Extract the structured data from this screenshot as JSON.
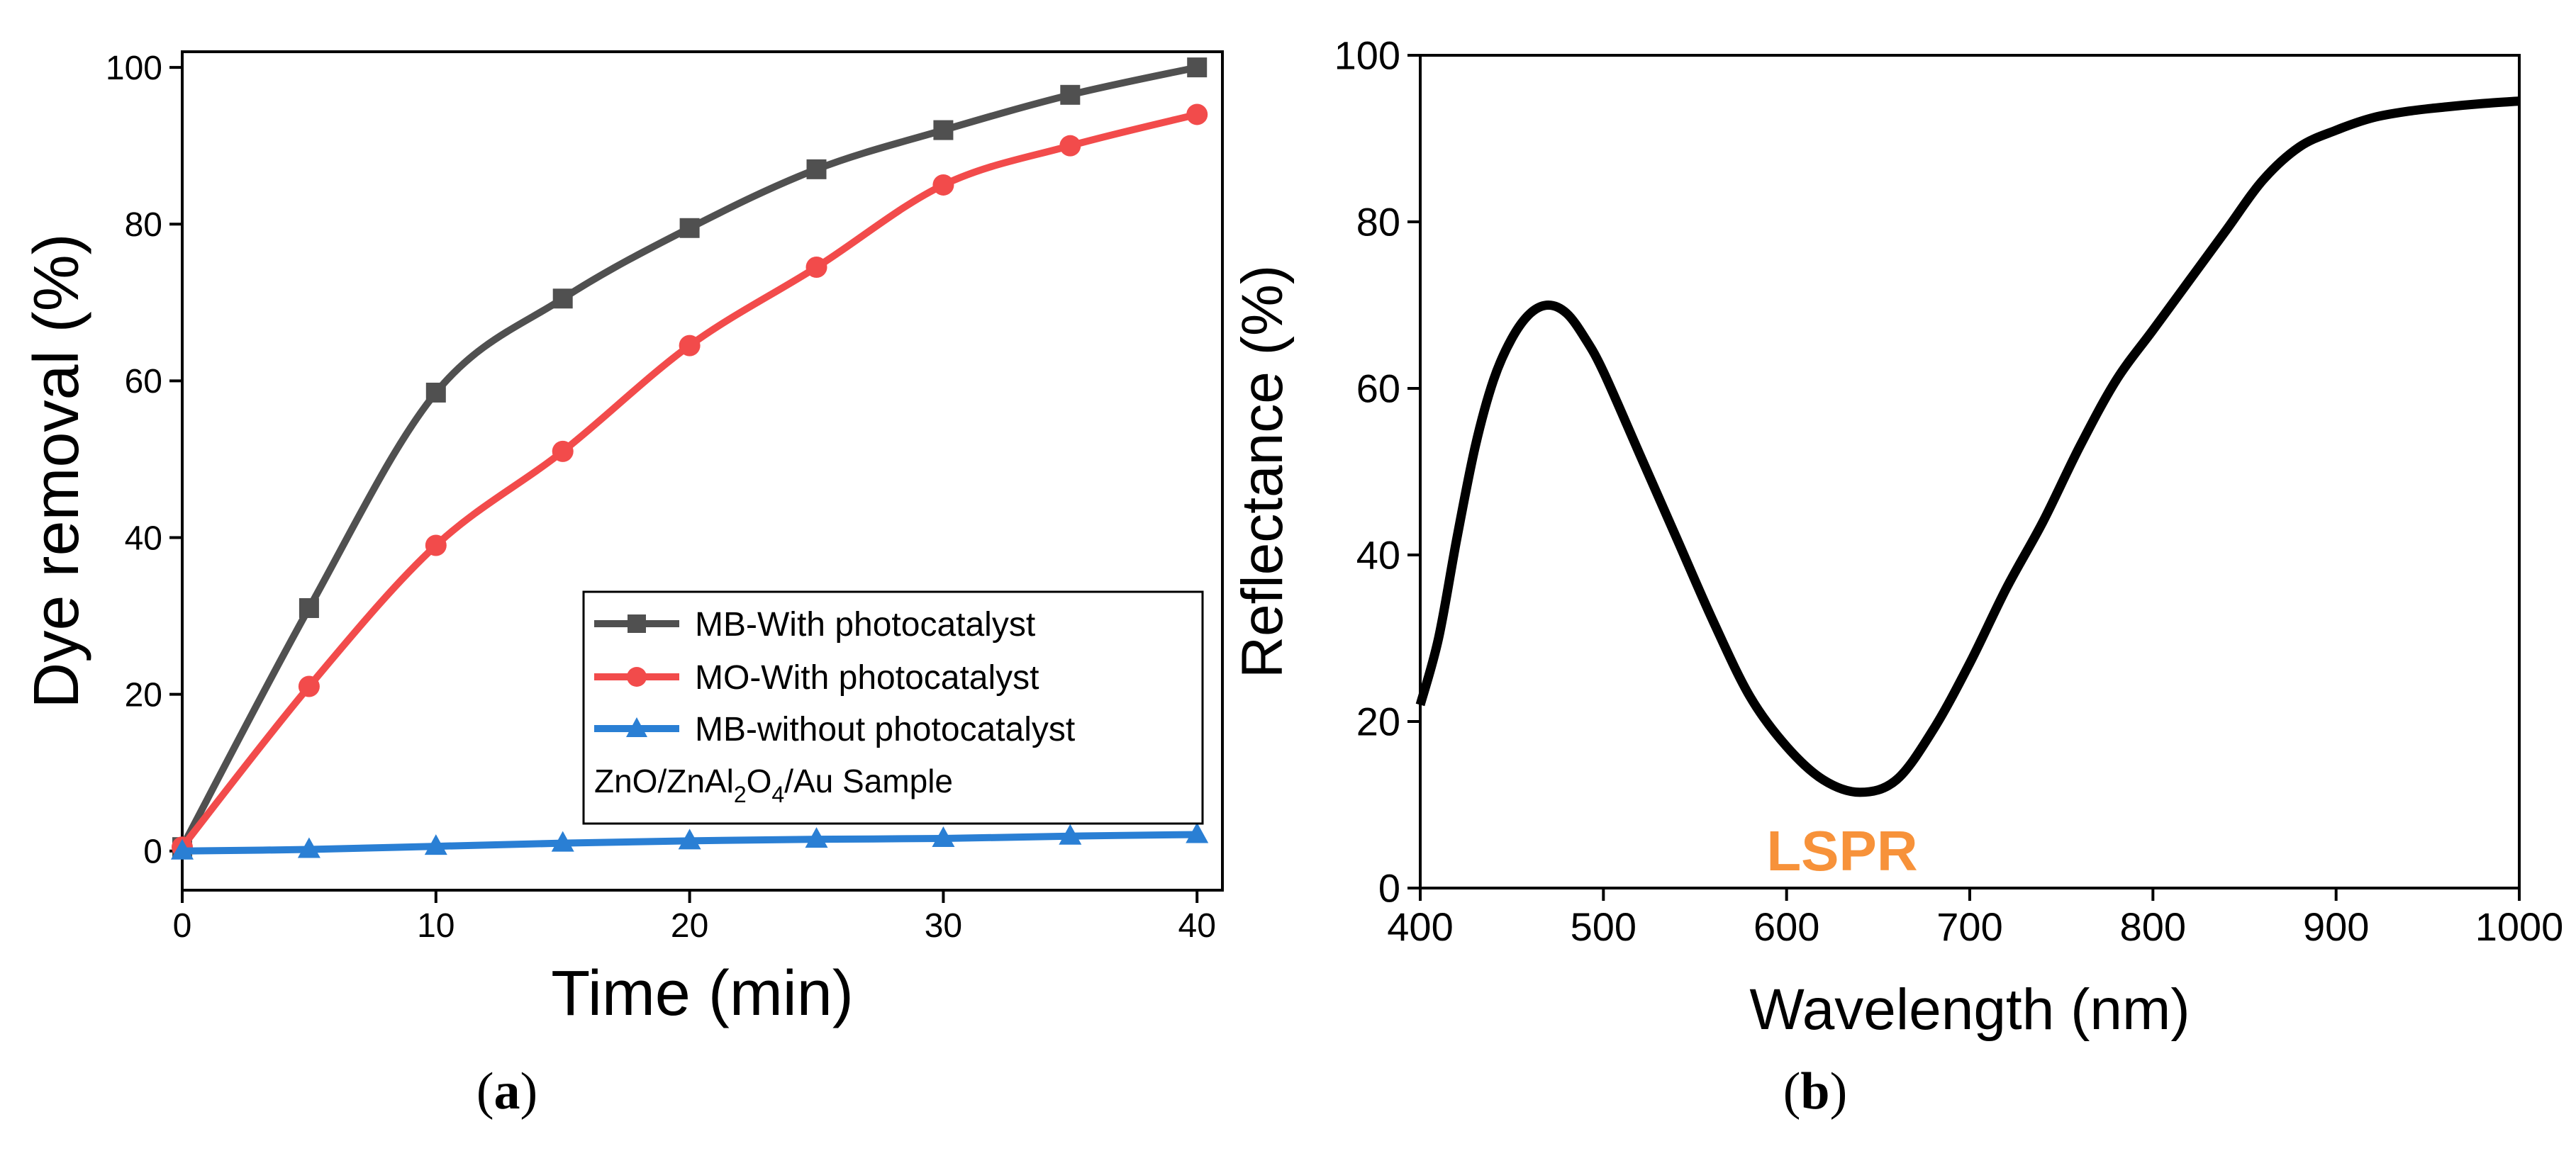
{
  "colors": {
    "mb_with": "#505050",
    "mo_with": "#f24b4b",
    "mb_without": "#2a7fd4",
    "reflectance": "#000000",
    "lspr": "#f7923a"
  },
  "chart_data": [
    {
      "type": "line",
      "panel_label": "a",
      "xlabel": "Time (min)",
      "ylabel": "Dye removal (%)",
      "xlim": [
        0,
        41
      ],
      "ylim": [
        -5,
        102
      ],
      "xticks": [
        0,
        10,
        20,
        30,
        40
      ],
      "yticks": [
        0,
        20,
        40,
        60,
        80,
        100
      ],
      "legend_position": "bottom-right",
      "legend_note": {
        "prefix": "ZnO/ZnAl",
        "sub1": "2",
        "mid": "O",
        "sub2": "4",
        "suffix": "/Au Sample"
      },
      "x": [
        0,
        5,
        10,
        15,
        20,
        25,
        30,
        35,
        40
      ],
      "series": [
        {
          "name": "MB-With photocatalyst",
          "color": "#505050",
          "marker": "square",
          "values": [
            0.5,
            31,
            58.5,
            70.5,
            79.5,
            87,
            92,
            96.5,
            100
          ]
        },
        {
          "name": "MO-With photocatalyst",
          "color": "#f24b4b",
          "marker": "circle",
          "values": [
            0.5,
            21,
            39,
            51,
            64.5,
            74.5,
            85,
            90,
            94
          ]
        },
        {
          "name": "MB-without photocatalyst",
          "color": "#2a7fd4",
          "marker": "triangle",
          "values": [
            0,
            0.2,
            0.6,
            1.0,
            1.3,
            1.5,
            1.6,
            1.9,
            2.1
          ]
        }
      ]
    },
    {
      "type": "line",
      "panel_label": "b",
      "xlabel": "Wavelength (nm)",
      "ylabel": "Reflectance (%)",
      "xlim": [
        400,
        1000
      ],
      "ylim": [
        0,
        100
      ],
      "xticks": [
        400,
        500,
        600,
        700,
        800,
        900,
        1000
      ],
      "yticks": [
        0,
        20,
        40,
        60,
        80,
        100
      ],
      "annotation": "LSPR",
      "series": [
        {
          "name": "Reflectance",
          "color": "#000000",
          "x": [
            400,
            410,
            420,
            430,
            440,
            450,
            460,
            470,
            480,
            490,
            500,
            520,
            540,
            560,
            580,
            600,
            620,
            640,
            660,
            680,
            700,
            720,
            740,
            760,
            780,
            800,
            820,
            840,
            860,
            880,
            900,
            920,
            940,
            960,
            980,
            1000
          ],
          "values": [
            22,
            30,
            42,
            53,
            61,
            66,
            69,
            70,
            69,
            66,
            62,
            52,
            42,
            32,
            23,
            17,
            13,
            11.5,
            13,
            19,
            27,
            36,
            44,
            53,
            61,
            67,
            73,
            79,
            85,
            89,
            91,
            92.5,
            93.3,
            93.8,
            94.2,
            94.5
          ]
        }
      ]
    }
  ]
}
